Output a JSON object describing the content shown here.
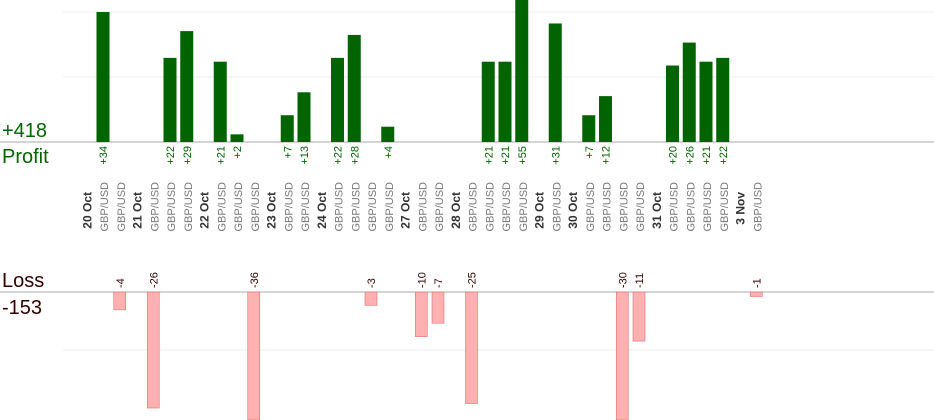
{
  "summary": {
    "profit_total": "+418",
    "profit_label": "Profit",
    "loss_label": "Loss",
    "loss_total": "-153"
  },
  "colors": {
    "profit": "#006400",
    "loss": "#ffb0b0",
    "loss_stroke": "#e07070",
    "loss_label": "#330000",
    "grid": "#eeeeee",
    "axis": "#aaaaaa",
    "pair_text": "#777777",
    "date_text": "#333333"
  },
  "chart_data": {
    "type": "bar",
    "profit_scale_max": 34,
    "loss_scale_max": 26,
    "dates": [
      "20 Oct",
      "21 Oct",
      "22 Oct",
      "23 Oct",
      "24 Oct",
      "27 Oct",
      "28 Oct",
      "29 Oct",
      "30 Oct",
      "31 Oct",
      "3 Nov"
    ],
    "trades": [
      {
        "slot": 1,
        "date": "20 Oct",
        "pair": "GBP/USD",
        "value": 34,
        "label": "+34"
      },
      {
        "slot": 2,
        "date": "20 Oct",
        "pair": "GBP/USD",
        "value": -4,
        "label": "-4"
      },
      {
        "slot": 4,
        "date": "21 Oct",
        "pair": "GBP/USD",
        "value": -26,
        "label": "-26"
      },
      {
        "slot": 5,
        "date": "21 Oct",
        "pair": "GBP/USD",
        "value": 22,
        "label": "+22"
      },
      {
        "slot": 6,
        "date": "21 Oct",
        "pair": "GBP/USD",
        "value": 29,
        "label": "+29"
      },
      {
        "slot": 8,
        "date": "22 Oct",
        "pair": "GBP/USD",
        "value": 21,
        "label": "+21"
      },
      {
        "slot": 9,
        "date": "22 Oct",
        "pair": "GBP/USD",
        "value": 2,
        "label": "+2"
      },
      {
        "slot": 10,
        "date": "22 Oct",
        "pair": "GBP/USD",
        "value": -36,
        "label": "-36"
      },
      {
        "slot": 12,
        "date": "23 Oct",
        "pair": "GBP/USD",
        "value": 7,
        "label": "+7"
      },
      {
        "slot": 13,
        "date": "23 Oct",
        "pair": "GBP/USD",
        "value": 13,
        "label": "+13"
      },
      {
        "slot": 15,
        "date": "24 Oct",
        "pair": "GBP/USD",
        "value": 22,
        "label": "+22"
      },
      {
        "slot": 16,
        "date": "24 Oct",
        "pair": "GBP/USD",
        "value": 28,
        "label": "+28"
      },
      {
        "slot": 17,
        "date": "24 Oct",
        "pair": "GBP/USD",
        "value": -3,
        "label": "-3"
      },
      {
        "slot": 18,
        "date": "24 Oct",
        "pair": "GBP/USD",
        "value": 4,
        "label": "+4"
      },
      {
        "slot": 20,
        "date": "27 Oct",
        "pair": "GBP/USD",
        "value": -10,
        "label": "-10"
      },
      {
        "slot": 21,
        "date": "27 Oct",
        "pair": "GBP/USD",
        "value": -7,
        "label": "-7"
      },
      {
        "slot": 23,
        "date": "28 Oct",
        "pair": "GBP/USD",
        "value": -25,
        "label": "-25"
      },
      {
        "slot": 24,
        "date": "28 Oct",
        "pair": "GBP/USD",
        "value": 21,
        "label": "+21"
      },
      {
        "slot": 25,
        "date": "28 Oct",
        "pair": "GBP/USD",
        "value": 21,
        "label": "+21"
      },
      {
        "slot": 26,
        "date": "28 Oct",
        "pair": "GBP/USD",
        "value": 55,
        "label": "+55"
      },
      {
        "slot": 28,
        "date": "29 Oct",
        "pair": "GBP/USD",
        "value": 31,
        "label": "+31"
      },
      {
        "slot": 30,
        "date": "30 Oct",
        "pair": "GBP/USD",
        "value": 7,
        "label": "+7"
      },
      {
        "slot": 31,
        "date": "30 Oct",
        "pair": "GBP/USD",
        "value": 12,
        "label": "+12"
      },
      {
        "slot": 32,
        "date": "30 Oct",
        "pair": "GBP/USD",
        "value": -30,
        "label": "-30"
      },
      {
        "slot": 33,
        "date": "30 Oct",
        "pair": "GBP/USD",
        "value": -11,
        "label": "-11"
      },
      {
        "slot": 35,
        "date": "31 Oct",
        "pair": "GBP/USD",
        "value": 20,
        "label": "+20"
      },
      {
        "slot": 36,
        "date": "31 Oct",
        "pair": "GBP/USD",
        "value": 26,
        "label": "+26"
      },
      {
        "slot": 37,
        "date": "31 Oct",
        "pair": "GBP/USD",
        "value": 21,
        "label": "+21"
      },
      {
        "slot": 38,
        "date": "31 Oct",
        "pair": "GBP/USD",
        "value": 22,
        "label": "+22"
      },
      {
        "slot": 40,
        "date": "3 Nov",
        "pair": "GBP/USD",
        "value": -1,
        "label": "-1"
      }
    ]
  }
}
